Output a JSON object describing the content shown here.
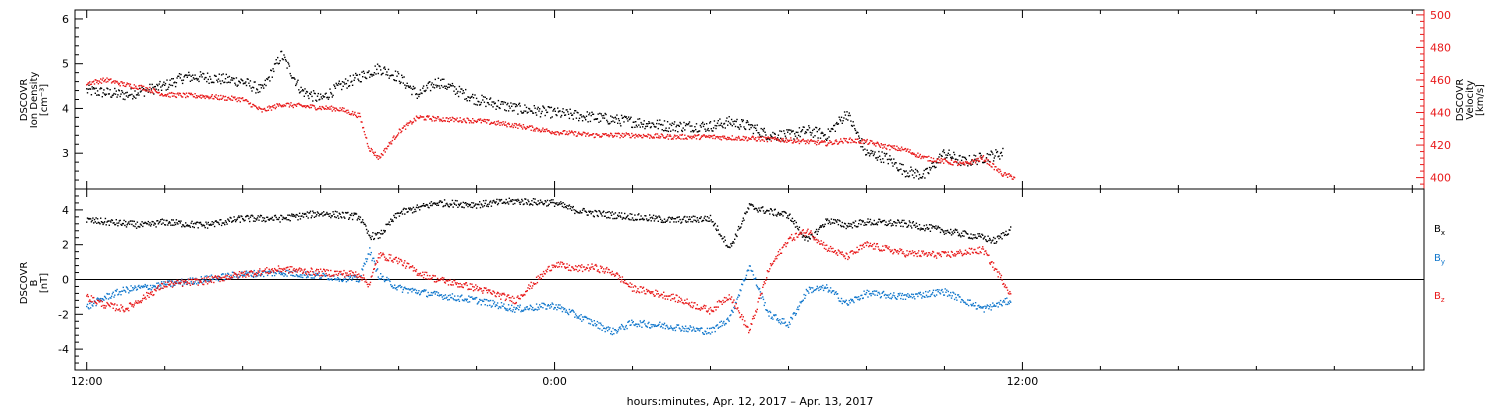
{
  "xaxis": {
    "label": "hours:minutes, Apr. 12, 2017 – Apr. 13, 2017",
    "range_hours": [
      -12.3,
      22.3
    ],
    "major_ticks": [
      {
        "hour": -12,
        "label": "12:00"
      },
      {
        "hour": 0,
        "label": "0:00"
      },
      {
        "hour": 12,
        "label": "12:00"
      }
    ],
    "minor_step_hours": 2
  },
  "chart_data": [
    {
      "type": "scatter",
      "panel": "top",
      "ylabel_left": [
        "DSCOVR",
        "Ion Density",
        "[cm⁻³]"
      ],
      "ylabel_right": [
        "DSCOVR",
        "Velocity",
        "[km/s]"
      ],
      "ylim_left": [
        2.2,
        6.2
      ],
      "yticks_left": [
        3,
        4,
        5,
        6
      ],
      "ylim_right": [
        393,
        503
      ],
      "yticks_right": [
        400,
        420,
        440,
        460,
        480,
        500
      ],
      "right_axis_color": "#e8191a",
      "series": [
        {
          "axis": "left",
          "color": "#000000",
          "x": [
            -12,
            -11,
            -10,
            -9.5,
            -9,
            -8,
            -7.5,
            -7,
            -6.5,
            -6,
            -5.5,
            -5,
            -4.5,
            -4,
            -3.5,
            -3,
            -2.5,
            -2,
            -1.5,
            -1,
            0,
            1,
            2,
            3,
            4,
            4.5,
            5,
            5.5,
            6,
            6.5,
            7,
            7.5,
            8,
            8.5,
            9,
            9.5,
            10,
            10.5,
            11,
            11.5
          ],
          "y": [
            4.4,
            4.3,
            4.5,
            4.7,
            4.7,
            4.6,
            4.4,
            5.2,
            4.4,
            4.2,
            4.5,
            4.7,
            4.9,
            4.7,
            4.3,
            4.6,
            4.4,
            4.2,
            4.1,
            4.0,
            3.9,
            3.8,
            3.7,
            3.6,
            3.6,
            3.7,
            3.6,
            3.4,
            3.4,
            3.5,
            3.4,
            3.9,
            3.0,
            2.9,
            2.6,
            2.5,
            3.0,
            2.8,
            2.9,
            3.0
          ]
        },
        {
          "axis": "right",
          "color": "#e8191a",
          "x": [
            -12,
            -11.5,
            -11,
            -10.5,
            -10,
            -9,
            -8,
            -7.5,
            -7,
            -6.5,
            -6,
            -5.5,
            -5,
            -4.75,
            -4.5,
            -4,
            -3.5,
            -3,
            -2,
            -1,
            0,
            1,
            2,
            3,
            4,
            5,
            6,
            7,
            7.5,
            8,
            8.5,
            9,
            9.5,
            10,
            10.5,
            11,
            11.5,
            11.8
          ],
          "y": [
            458,
            460,
            457,
            455,
            451,
            450,
            448,
            441,
            445,
            444,
            443,
            442,
            438,
            418,
            412,
            428,
            437,
            436,
            435,
            432,
            428,
            426,
            426,
            425,
            425,
            424,
            423,
            421,
            423,
            422,
            419,
            417,
            412,
            410,
            408,
            412,
            402,
            400
          ]
        }
      ]
    },
    {
      "type": "scatter",
      "panel": "bottom",
      "ylabel_left": [
        "DSCOVR",
        "B",
        "[nT]"
      ],
      "ylim": [
        -5.2,
        5.2
      ],
      "yticks": [
        -4,
        -2,
        0,
        2,
        4
      ],
      "zero_line": true,
      "legend": "right",
      "series": [
        {
          "name": "Bx",
          "color": "#000000",
          "x": [
            -12,
            -11,
            -10.5,
            -10,
            -9,
            -8,
            -7,
            -6,
            -5,
            -4.75,
            -4.5,
            -4,
            -3,
            -2,
            -1,
            0,
            0.5,
            1,
            2,
            3,
            4,
            4.5,
            5,
            5.5,
            6,
            6.5,
            7,
            7.5,
            8,
            9,
            10,
            11,
            11.3,
            11.7
          ],
          "y": [
            3.4,
            3.2,
            3.1,
            3.3,
            3.1,
            3.5,
            3.5,
            3.8,
            3.6,
            2.5,
            2.5,
            3.8,
            4.4,
            4.3,
            4.5,
            4.4,
            4.0,
            3.8,
            3.6,
            3.4,
            3.5,
            1.8,
            4.2,
            3.9,
            3.7,
            2.2,
            3.4,
            3.1,
            3.3,
            3.2,
            2.8,
            2.4,
            2.2,
            2.9
          ]
        },
        {
          "name": "By",
          "color": "#1177cc",
          "x": [
            -12,
            -11.5,
            -11,
            -10,
            -9,
            -8,
            -7,
            -6,
            -5,
            -4.75,
            -4.5,
            -4,
            -3,
            -2,
            -1,
            0,
            1,
            1.5,
            2,
            3,
            4,
            4.5,
            5,
            5.5,
            6,
            6.5,
            7,
            7.5,
            8,
            9,
            10,
            11,
            11.7
          ],
          "y": [
            -1.6,
            -1.0,
            -0.6,
            -0.3,
            0.0,
            0.3,
            0.4,
            0.2,
            0.0,
            1.7,
            0.2,
            -0.5,
            -0.9,
            -1.2,
            -1.7,
            -1.5,
            -2.5,
            -3.0,
            -2.5,
            -2.7,
            -3.0,
            -2.2,
            0.8,
            -2.0,
            -2.6,
            -0.6,
            -0.5,
            -1.4,
            -0.8,
            -1.0,
            -0.7,
            -1.7,
            -1.2
          ]
        },
        {
          "name": "Bz",
          "color": "#e8191a",
          "x": [
            -12,
            -11.5,
            -11,
            -10,
            -9,
            -8,
            -7,
            -6,
            -5,
            -4.75,
            -4.5,
            -4,
            -3.5,
            -3,
            -2,
            -1,
            0,
            0.5,
            1,
            1.5,
            2,
            3,
            4,
            4.5,
            5,
            5.5,
            6,
            6.5,
            7,
            7.5,
            8,
            9,
            10,
            11,
            11.7
          ],
          "y": [
            -1.0,
            -1.5,
            -1.7,
            -0.3,
            -0.1,
            0.3,
            0.6,
            0.4,
            0.3,
            -0.3,
            1.4,
            1.1,
            0.4,
            0.0,
            -0.5,
            -1.2,
            0.9,
            0.6,
            0.7,
            0.4,
            -0.5,
            -1.0,
            -1.8,
            -0.9,
            -3.0,
            0.6,
            2.3,
            2.8,
            1.8,
            1.3,
            2.0,
            1.5,
            1.4,
            1.7,
            -0.8
          ]
        }
      ]
    }
  ]
}
